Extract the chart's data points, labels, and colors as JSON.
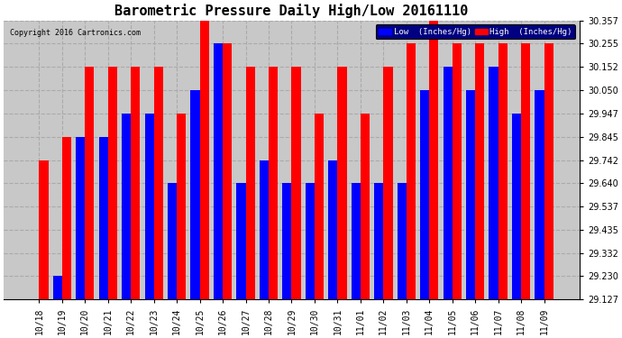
{
  "title": "Barometric Pressure Daily High/Low 20161110",
  "copyright": "Copyright 2016 Cartronics.com",
  "legend_low": "Low  (Inches/Hg)",
  "legend_high": "High  (Inches/Hg)",
  "dates": [
    "10/18",
    "10/19",
    "10/20",
    "10/21",
    "10/22",
    "10/23",
    "10/24",
    "10/25",
    "10/26",
    "10/27",
    "10/28",
    "10/29",
    "10/30",
    "10/31",
    "11/01",
    "11/02",
    "11/03",
    "11/04",
    "11/05",
    "11/06",
    "11/07",
    "11/08",
    "11/09"
  ],
  "low_values": [
    29.127,
    29.23,
    29.845,
    29.845,
    29.947,
    29.947,
    29.64,
    30.05,
    30.255,
    29.64,
    29.742,
    29.64,
    29.64,
    29.742,
    29.64,
    29.64,
    29.64,
    30.05,
    30.152,
    30.05,
    30.152,
    29.947,
    30.05
  ],
  "high_values": [
    29.742,
    29.845,
    30.152,
    30.152,
    30.152,
    30.152,
    29.947,
    30.357,
    30.255,
    30.152,
    30.152,
    30.152,
    29.947,
    30.152,
    29.947,
    30.152,
    30.255,
    30.357,
    30.255,
    30.255,
    30.255,
    30.255,
    30.255
  ],
  "ylim_min": 29.127,
  "ylim_max": 30.357,
  "yticks": [
    29.127,
    29.23,
    29.332,
    29.435,
    29.537,
    29.64,
    29.742,
    29.845,
    29.947,
    30.05,
    30.152,
    30.255,
    30.357
  ],
  "color_low": "#0000ff",
  "color_high": "#ff0000",
  "bg_color": "#ffffff",
  "plot_bg": "#c8c8c8",
  "grid_color": "#aaaaaa",
  "title_fontsize": 11,
  "tick_fontsize": 7,
  "bar_width": 0.4
}
